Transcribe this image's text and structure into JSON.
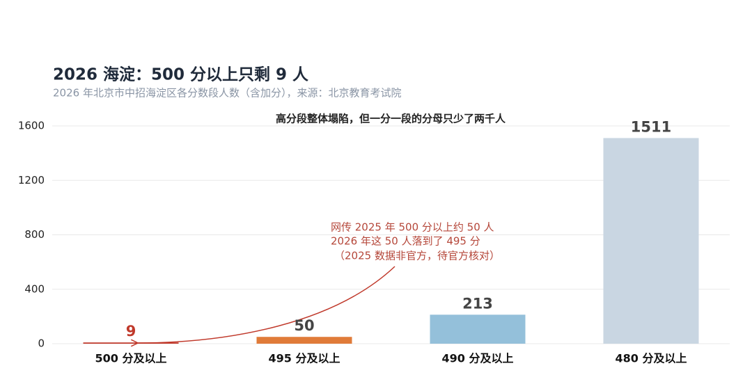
{
  "chart_data": {
    "type": "bar",
    "title": "2026 海淀：500 分以上只剩 9 人",
    "subtitle": "2026 年北京市中招海淀区各分数段人数（含加分），来源：北京教育考试院",
    "note": "高分段整体塌陷，但一分一段的分母只少了两千人",
    "annotation": [
      "网传 2025 年 500 分以上约 50 人",
      "2026 年这 50 人落到了 495 分",
      "（2025 数据非官方，待官方核对）"
    ],
    "categories": [
      "500 分及以上",
      "495 分及以上",
      "490 分及以上",
      "480 分及以上"
    ],
    "values": [
      9,
      50,
      213,
      1511
    ],
    "colors": [
      "#c0392b",
      "#e07b39",
      "#94c0da",
      "#c9d6e2"
    ],
    "value_label_colors": [
      "#c0392b",
      "#444444",
      "#444444",
      "#444444"
    ],
    "ylim": [
      0,
      1600
    ],
    "yticks": [
      0,
      400,
      800,
      1200,
      1600
    ],
    "grid": true
  }
}
